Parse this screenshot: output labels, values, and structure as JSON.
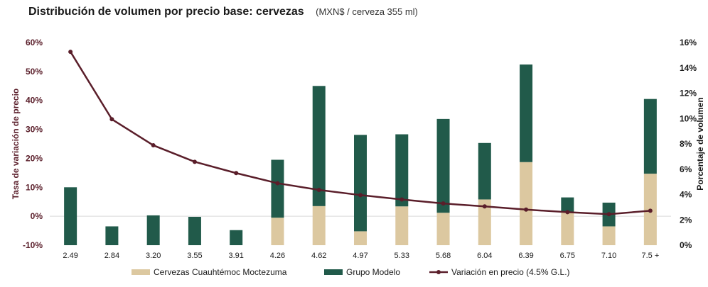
{
  "title": "Distribución de volumen por precio base: cervezas",
  "subtitle": "(MXN$ / cerveza 355 ml)",
  "colors": {
    "cm": "#dcc8a0",
    "gm": "#215a4a",
    "line": "#5a1e2a",
    "axis_text": "#5a1e2a",
    "grid": "#d9d9d9"
  },
  "chart_data": {
    "type": "bar",
    "title": "Distribución de volumen por precio base: cervezas",
    "subtitle": "(MXN$ / cerveza 355 ml)",
    "categories": [
      "2.49",
      "2.84",
      "3.20",
      "3.55",
      "3.91",
      "4.26",
      "4.62",
      "4.97",
      "5.33",
      "5.68",
      "6.04",
      "6.39",
      "6.75",
      "7.10",
      "7.5 +"
    ],
    "ylabel_left": "Tasa de variación de precio",
    "ylabel_right": "Porcentaje de volumen",
    "y_left": {
      "lim": [
        -10,
        60
      ],
      "ticks": [
        -10,
        0,
        10,
        20,
        30,
        40,
        50,
        60
      ],
      "format": "percent"
    },
    "y_right": {
      "lim": [
        0,
        16
      ],
      "ticks": [
        0,
        2,
        4,
        6,
        8,
        10,
        12,
        14,
        16
      ],
      "format": "percent"
    },
    "bars_stacked_on": "y_left",
    "series": [
      {
        "name": "Cervezas Cuauhtémoc Moctezuma",
        "kind": "bar",
        "color": "#dcc8a0",
        "values": [
          0,
          0,
          0,
          0,
          0,
          9.5,
          13.5,
          4.8,
          13.4,
          11.2,
          15.8,
          28.7,
          11.4,
          6.5,
          24.7
        ]
      },
      {
        "name": "Grupo Modelo",
        "kind": "bar",
        "color": "#215a4a",
        "values": [
          20,
          6.5,
          10.3,
          9.8,
          5.2,
          20,
          41.5,
          33.3,
          24.9,
          32.4,
          19.5,
          33.7,
          5.1,
          8.2,
          25.8
        ]
      },
      {
        "name": "Variación en precio (4.5% G.L.)",
        "kind": "line",
        "axis": "y_left",
        "color": "#5a1e2a",
        "values": [
          56.8,
          33.5,
          24.5,
          18.8,
          14.9,
          11.4,
          9.1,
          7.3,
          5.8,
          4.4,
          3.4,
          2.3,
          1.4,
          0.7,
          1.9
        ]
      }
    ],
    "legend": "bottom",
    "grid": false
  }
}
